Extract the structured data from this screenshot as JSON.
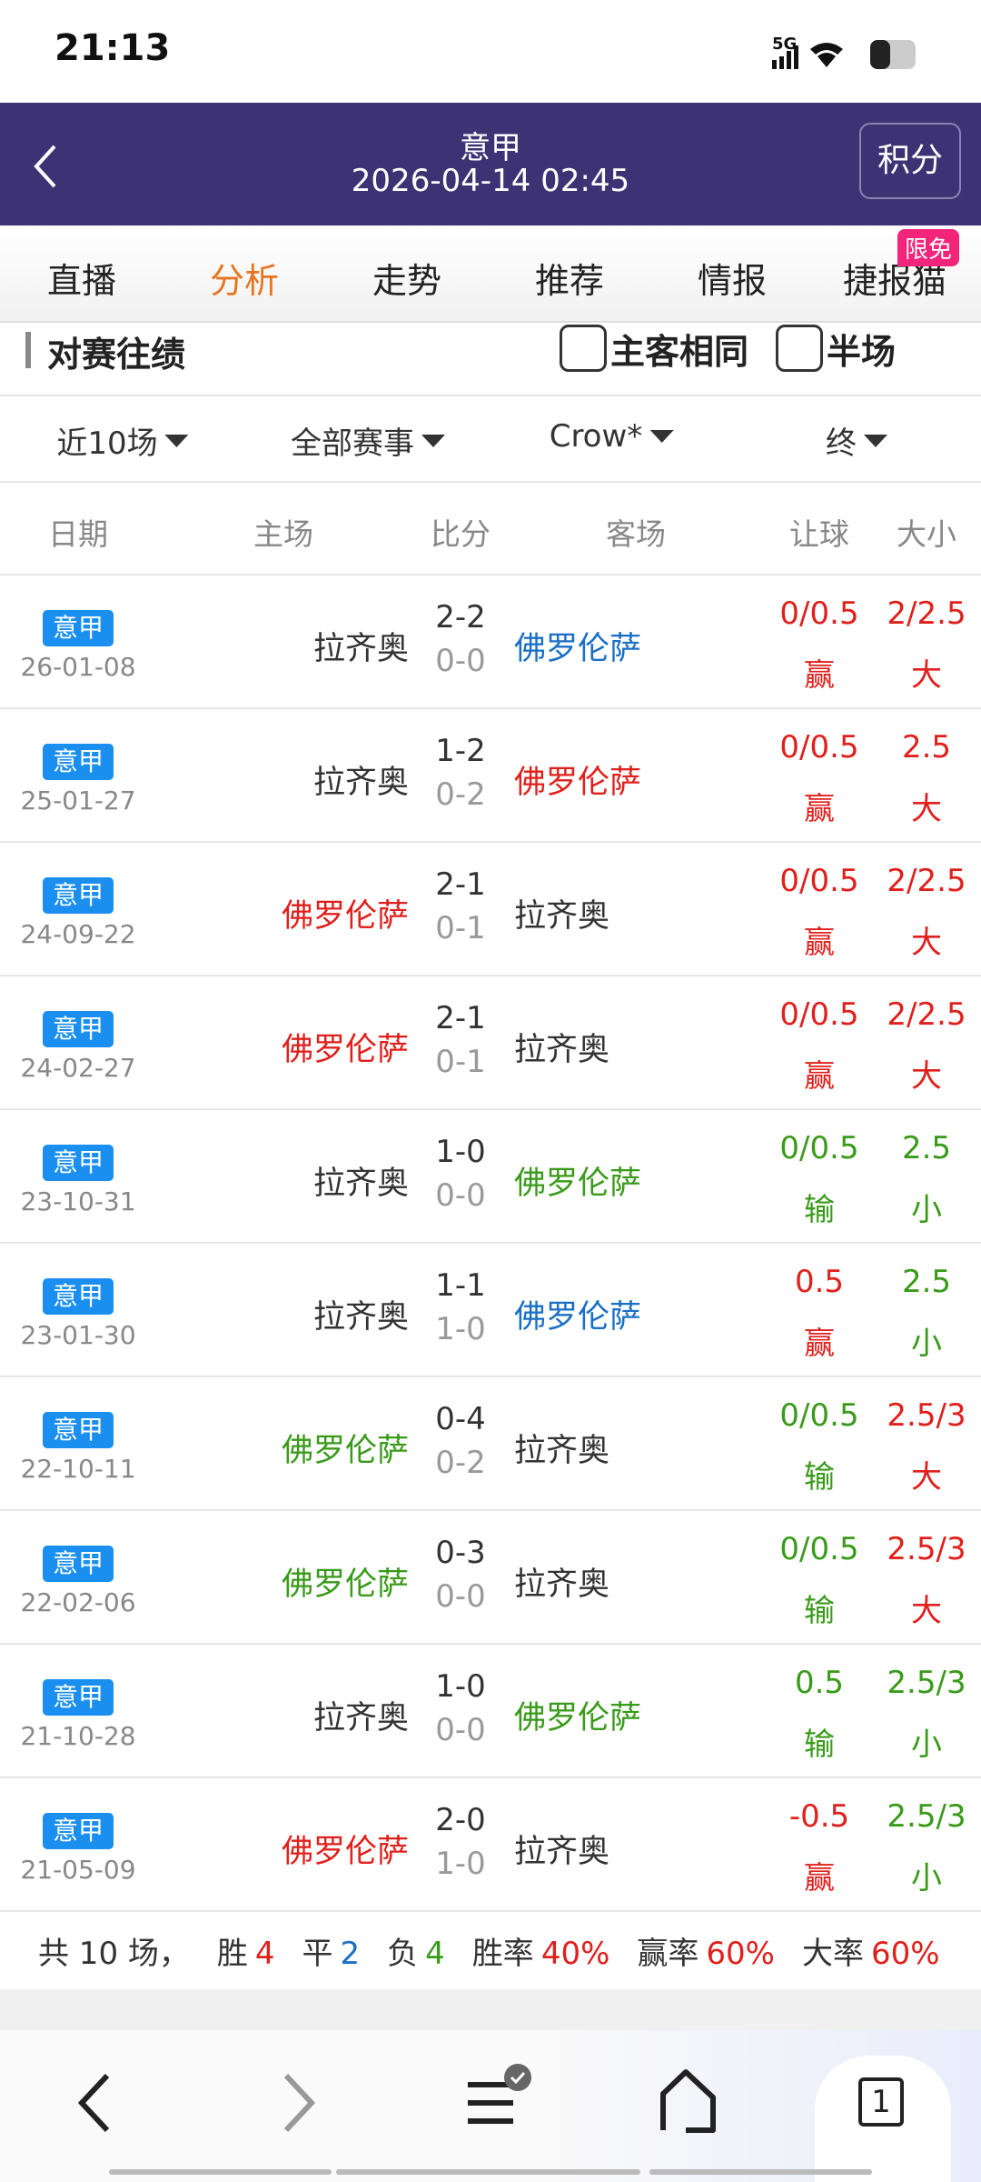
{
  "status_bar": {
    "time": "21:13",
    "network": "5G"
  },
  "header": {
    "title": "意甲",
    "datetime": "2026-04-14 02:45",
    "button": "积分"
  },
  "tabs": {
    "items": [
      "直播",
      "分析",
      "走势",
      "推荐",
      "情报",
      "捷报猫"
    ],
    "active": 1,
    "badge": "限免"
  },
  "section": {
    "title": "对赛往绩",
    "options": [
      "主客相同",
      "半场"
    ]
  },
  "filters": [
    "近10场",
    "全部赛事",
    "Crow*",
    "终"
  ],
  "columns": [
    "日期",
    "主场",
    "比分",
    "客场",
    "让球",
    "大小"
  ],
  "matches": [
    {
      "league": "意甲",
      "date": "26-01-08",
      "home": "拉齐奥",
      "home_color": "black",
      "score": "2-2",
      "half": "0-0",
      "away": "佛罗伦萨",
      "away_color": "blue",
      "handicap": "0/0.5",
      "handicap_result": "赢",
      "handicap_color": "red",
      "ou": "2/2.5",
      "ou_result": "大",
      "ou_color": "red"
    },
    {
      "league": "意甲",
      "date": "25-01-27",
      "home": "拉齐奥",
      "home_color": "black",
      "score": "1-2",
      "half": "0-2",
      "away": "佛罗伦萨",
      "away_color": "red",
      "handicap": "0/0.5",
      "handicap_result": "赢",
      "handicap_color": "red",
      "ou": "2.5",
      "ou_result": "大",
      "ou_color": "red"
    },
    {
      "league": "意甲",
      "date": "24-09-22",
      "home": "佛罗伦萨",
      "home_color": "red",
      "score": "2-1",
      "half": "0-1",
      "away": "拉齐奥",
      "away_color": "black",
      "handicap": "0/0.5",
      "handicap_result": "赢",
      "handicap_color": "red",
      "ou": "2/2.5",
      "ou_result": "大",
      "ou_color": "red"
    },
    {
      "league": "意甲",
      "date": "24-02-27",
      "home": "佛罗伦萨",
      "home_color": "red",
      "score": "2-1",
      "half": "0-1",
      "away": "拉齐奥",
      "away_color": "black",
      "handicap": "0/0.5",
      "handicap_result": "赢",
      "handicap_color": "red",
      "ou": "2/2.5",
      "ou_result": "大",
      "ou_color": "red"
    },
    {
      "league": "意甲",
      "date": "23-10-31",
      "home": "拉齐奥",
      "home_color": "black",
      "score": "1-0",
      "half": "0-0",
      "away": "佛罗伦萨",
      "away_color": "green",
      "handicap": "0/0.5",
      "handicap_result": "输",
      "handicap_color": "green",
      "ou": "2.5",
      "ou_result": "小",
      "ou_color": "green"
    },
    {
      "league": "意甲",
      "date": "23-01-30",
      "home": "拉齐奥",
      "home_color": "black",
      "score": "1-1",
      "half": "1-0",
      "away": "佛罗伦萨",
      "away_color": "blue",
      "handicap": "0.5",
      "handicap_result": "赢",
      "handicap_color": "red",
      "ou": "2.5",
      "ou_result": "小",
      "ou_color": "green"
    },
    {
      "league": "意甲",
      "date": "22-10-11",
      "home": "佛罗伦萨",
      "home_color": "green",
      "score": "0-4",
      "half": "0-2",
      "away": "拉齐奥",
      "away_color": "black",
      "handicap": "0/0.5",
      "handicap_result": "输",
      "handicap_color": "green",
      "ou": "2.5/3",
      "ou_result": "大",
      "ou_color": "red"
    },
    {
      "league": "意甲",
      "date": "22-02-06",
      "home": "佛罗伦萨",
      "home_color": "green",
      "score": "0-3",
      "half": "0-0",
      "away": "拉齐奥",
      "away_color": "black",
      "handicap": "0/0.5",
      "handicap_result": "输",
      "handicap_color": "green",
      "ou": "2.5/3",
      "ou_result": "大",
      "ou_color": "red"
    },
    {
      "league": "意甲",
      "date": "21-10-28",
      "home": "拉齐奥",
      "home_color": "black",
      "score": "1-0",
      "half": "0-0",
      "away": "佛罗伦萨",
      "away_color": "green",
      "handicap": "0.5",
      "handicap_result": "输",
      "handicap_color": "green",
      "ou": "2.5/3",
      "ou_result": "小",
      "ou_color": "green"
    },
    {
      "league": "意甲",
      "date": "21-05-09",
      "home": "佛罗伦萨",
      "home_color": "red",
      "score": "2-0",
      "half": "1-0",
      "away": "拉齐奥",
      "away_color": "black",
      "handicap": "-0.5",
      "handicap_result": "赢",
      "handicap_color": "red",
      "ou": "2.5/3",
      "ou_result": "小",
      "ou_color": "green"
    }
  ],
  "summary": [
    {
      "label": "共 10 场，"
    },
    {
      "label": "胜",
      "value": "4",
      "color": "red"
    },
    {
      "label": "平",
      "value": "2",
      "color": "blue"
    },
    {
      "label": "负",
      "value": "4",
      "color": "green"
    },
    {
      "label": "胜率",
      "value": "40%",
      "color": "red"
    },
    {
      "label": "赢率",
      "value": "60%",
      "color": "red"
    },
    {
      "label": "大率",
      "value": "60%",
      "color": "red"
    }
  ],
  "nav": {
    "tab_count": "1"
  }
}
